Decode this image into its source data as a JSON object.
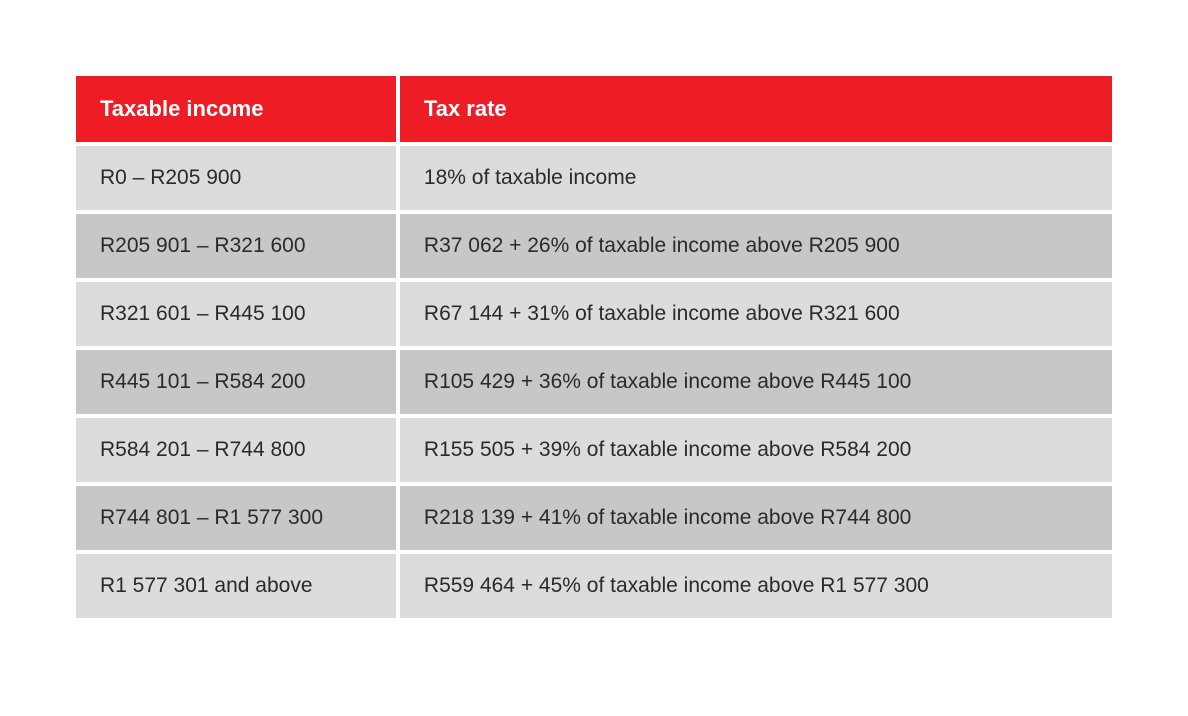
{
  "table": {
    "header_bg": "#ee1c25",
    "header_fg": "#ffffff",
    "row_odd_bg": "#dcdcdc",
    "row_even_bg": "#c7c7c7",
    "text_color": "#2a2a2a",
    "header_fontsize": 22,
    "cell_fontsize": 21,
    "border_spacing": 4,
    "columns": [
      {
        "key": "income",
        "label": "Taxable income",
        "width": "31%"
      },
      {
        "key": "rate",
        "label": "Tax rate",
        "width": "69%"
      }
    ],
    "rows": [
      {
        "income": "R0 – R205 900",
        "rate": "18% of taxable income"
      },
      {
        "income": "R205 901 – R321 600",
        "rate": "R37 062 + 26% of taxable income above R205 900"
      },
      {
        "income": "R321 601 – R445 100",
        "rate": "R67 144 + 31% of taxable income above R321 600"
      },
      {
        "income": "R445 101 – R584 200",
        "rate": "R105 429 + 36% of taxable income above R445 100"
      },
      {
        "income": "R584 201 – R744 800",
        "rate": "R155 505 + 39% of taxable income above R584 200"
      },
      {
        "income": "R744 801 – R1 577 300",
        "rate": "R218 139 + 41% of taxable income above R744 800"
      },
      {
        "income": "R1 577 301 and above",
        "rate": "R559 464 + 45% of taxable income above R1 577 300"
      }
    ]
  }
}
